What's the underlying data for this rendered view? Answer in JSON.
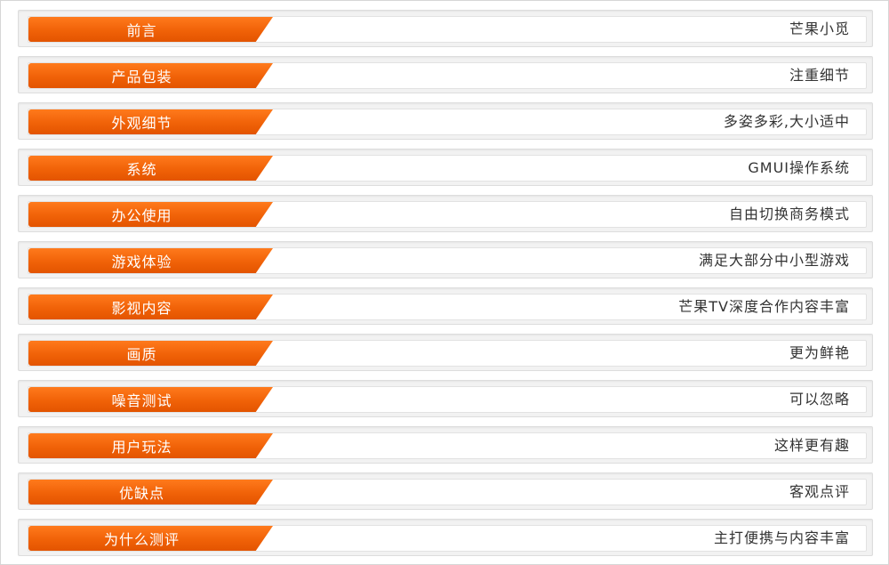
{
  "accent_color": "#f06208",
  "rows": [
    {
      "tab": "前言",
      "desc": "芒果小觅"
    },
    {
      "tab": "产品包装",
      "desc": "注重细节"
    },
    {
      "tab": "外观细节",
      "desc": "多姿多彩,大小适中"
    },
    {
      "tab": "系统",
      "desc": "GMUI操作系统"
    },
    {
      "tab": "办公使用",
      "desc": "自由切换商务模式"
    },
    {
      "tab": "游戏体验",
      "desc": "满足大部分中小型游戏"
    },
    {
      "tab": "影视内容",
      "desc": "芒果TV深度合作内容丰富"
    },
    {
      "tab": "画质",
      "desc": "更为鲜艳"
    },
    {
      "tab": "噪音测试",
      "desc": "可以忽略"
    },
    {
      "tab": "用户玩法",
      "desc": "这样更有趣"
    },
    {
      "tab": "优缺点",
      "desc": "客观点评"
    },
    {
      "tab": "为什么测评",
      "desc": "主打便携与内容丰富"
    }
  ]
}
